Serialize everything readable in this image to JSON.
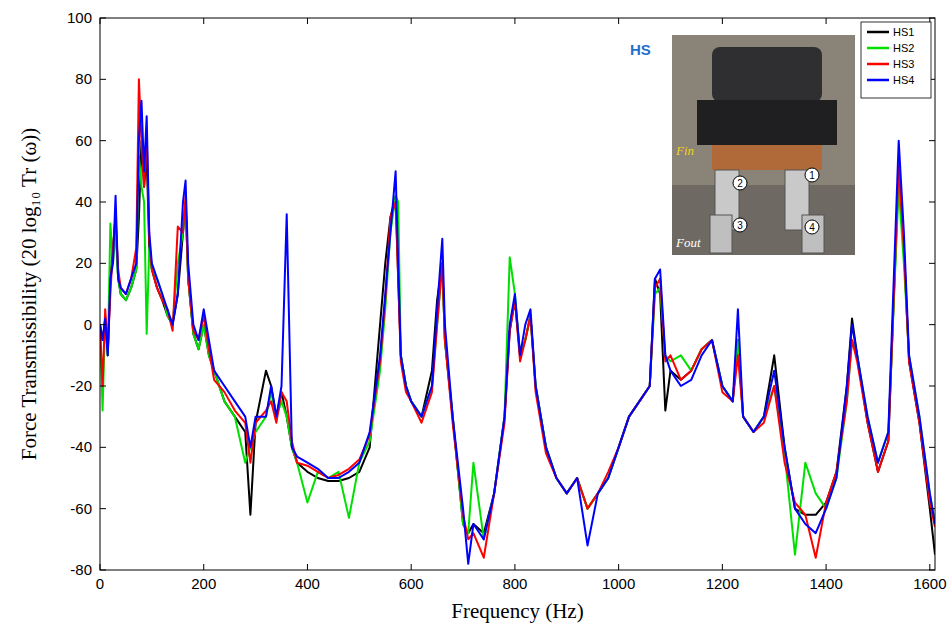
{
  "chart_data": {
    "type": "line",
    "x_label": "Frequency (Hz)",
    "y_label": "Force Transmissibility  (20 log₁₀ Tr (ω))",
    "annotations": [
      "HS",
      "Fin",
      "Fout",
      "1",
      "2",
      "3",
      "4"
    ],
    "xlim": [
      0,
      1610
    ],
    "xticks": [
      0,
      200,
      400,
      600,
      800,
      1000,
      1200,
      1400,
      1600
    ],
    "ylim": [
      -80,
      100
    ],
    "yticks": [
      -80,
      -60,
      -40,
      -20,
      0,
      20,
      40,
      60,
      80,
      100
    ],
    "grid": false,
    "legend": "upper right",
    "x": [
      0,
      5,
      10,
      15,
      20,
      25,
      30,
      35,
      40,
      50,
      60,
      70,
      75,
      80,
      85,
      90,
      95,
      100,
      110,
      120,
      130,
      140,
      150,
      160,
      165,
      170,
      180,
      190,
      200,
      210,
      220,
      240,
      260,
      280,
      290,
      300,
      320,
      330,
      340,
      350,
      360,
      370,
      380,
      400,
      420,
      440,
      460,
      480,
      500,
      520,
      540,
      550,
      560,
      570,
      575,
      580,
      590,
      600,
      620,
      640,
      650,
      660,
      665,
      680,
      700,
      710,
      720,
      740,
      760,
      780,
      790,
      800,
      810,
      820,
      830,
      840,
      860,
      880,
      900,
      920,
      940,
      960,
      980,
      1000,
      1020,
      1040,
      1060,
      1070,
      1080,
      1090,
      1100,
      1120,
      1140,
      1160,
      1180,
      1200,
      1220,
      1230,
      1240,
      1260,
      1280,
      1300,
      1320,
      1340,
      1360,
      1380,
      1400,
      1420,
      1440,
      1450,
      1460,
      1480,
      1500,
      1520,
      1540,
      1550,
      1560,
      1580,
      1600,
      1610
    ],
    "series": [
      {
        "name": "HS1",
        "color": "#000000",
        "values": [
          0,
          -5,
          2,
          -10,
          15,
          25,
          35,
          15,
          10,
          8,
          12,
          18,
          35,
          60,
          45,
          55,
          25,
          18,
          12,
          8,
          3,
          0,
          10,
          30,
          40,
          15,
          -3,
          -8,
          0,
          -10,
          -15,
          -25,
          -30,
          -35,
          -62,
          -32,
          -15,
          -20,
          -30,
          -22,
          -30,
          -40,
          -45,
          -48,
          -50,
          -51,
          -51,
          -50,
          -48,
          -40,
          0,
          20,
          35,
          42,
          15,
          -10,
          -20,
          -25,
          -30,
          -15,
          8,
          20,
          -5,
          -30,
          -65,
          -68,
          -65,
          -68,
          -55,
          -30,
          -2,
          8,
          -10,
          -5,
          3,
          -20,
          -40,
          -50,
          -55,
          -50,
          -60,
          -55,
          -50,
          -40,
          -30,
          -25,
          -20,
          15,
          10,
          -28,
          -15,
          -18,
          -15,
          -8,
          -5,
          -20,
          -25,
          -5,
          -30,
          -35,
          -30,
          -10,
          -40,
          -60,
          -62,
          -62,
          -58,
          -48,
          -20,
          2,
          -10,
          -32,
          -48,
          -38,
          50,
          25,
          -12,
          -32,
          -60,
          -75
        ]
      },
      {
        "name": "HS2",
        "color": "#00e000",
        "values": [
          0,
          -28,
          3,
          -10,
          33,
          20,
          30,
          15,
          10,
          8,
          12,
          18,
          55,
          45,
          40,
          -3,
          25,
          18,
          15,
          10,
          3,
          0,
          20,
          30,
          40,
          15,
          -3,
          -8,
          0,
          -10,
          -15,
          -25,
          -30,
          -45,
          -40,
          -35,
          -30,
          -22,
          -30,
          -25,
          -30,
          -40,
          -45,
          -58,
          -48,
          -50,
          -48,
          -63,
          -45,
          -38,
          -15,
          5,
          30,
          42,
          40,
          -10,
          -20,
          -25,
          -30,
          -20,
          0,
          20,
          -5,
          -30,
          -65,
          -68,
          -45,
          -70,
          -55,
          -30,
          22,
          10,
          -10,
          -5,
          3,
          -20,
          -40,
          -50,
          -55,
          -50,
          -60,
          -55,
          -50,
          -40,
          -30,
          -25,
          -20,
          10,
          12,
          -10,
          -12,
          -10,
          -15,
          -8,
          -5,
          -20,
          -25,
          -5,
          -30,
          -35,
          -30,
          -20,
          -42,
          -75,
          -45,
          -55,
          -60,
          -50,
          -25,
          -5,
          -10,
          -30,
          -45,
          -35,
          45,
          20,
          -10,
          -30,
          -55,
          -65
        ]
      },
      {
        "name": "HS3",
        "color": "#ff0000",
        "values": [
          0,
          -20,
          5,
          -8,
          10,
          25,
          35,
          18,
          12,
          10,
          15,
          25,
          80,
          60,
          45,
          62,
          28,
          18,
          12,
          8,
          5,
          -2,
          32,
          30,
          42,
          15,
          -2,
          -5,
          3,
          -8,
          -18,
          -22,
          -28,
          -32,
          -45,
          -32,
          -28,
          -25,
          -32,
          -22,
          -25,
          -38,
          -45,
          -46,
          -48,
          -50,
          -49,
          -47,
          -44,
          -36,
          -12,
          8,
          35,
          40,
          15,
          -12,
          -22,
          -25,
          -32,
          -22,
          0,
          20,
          -5,
          -32,
          -62,
          -70,
          -68,
          -76,
          -55,
          -32,
          -2,
          8,
          -12,
          -5,
          3,
          -22,
          -42,
          -50,
          -55,
          -50,
          -60,
          -55,
          -48,
          -40,
          -30,
          -25,
          -20,
          12,
          15,
          -12,
          -10,
          -18,
          -15,
          -8,
          -5,
          -22,
          -25,
          -10,
          -30,
          -35,
          -32,
          -20,
          -45,
          -58,
          -62,
          -76,
          -58,
          -48,
          -25,
          -5,
          -12,
          -32,
          -48,
          -38,
          52,
          25,
          -12,
          -32,
          -58,
          -66
        ]
      },
      {
        "name": "HS4",
        "color": "#0000ff",
        "values": [
          0,
          -5,
          2,
          -10,
          15,
          20,
          42,
          15,
          12,
          10,
          15,
          20,
          60,
          73,
          50,
          68,
          30,
          20,
          15,
          10,
          5,
          0,
          10,
          40,
          47,
          20,
          0,
          -5,
          5,
          -5,
          -15,
          -20,
          -25,
          -30,
          -40,
          -30,
          -30,
          -20,
          -30,
          -20,
          36,
          -40,
          -43,
          -45,
          -47,
          -50,
          -50,
          -48,
          -45,
          -35,
          -10,
          10,
          30,
          50,
          20,
          -10,
          -20,
          -25,
          -30,
          -20,
          5,
          28,
          0,
          -30,
          -60,
          -78,
          -65,
          -70,
          -55,
          -30,
          0,
          10,
          -10,
          0,
          5,
          -20,
          -40,
          -50,
          -55,
          -50,
          -72,
          -55,
          -50,
          -40,
          -30,
          -25,
          -20,
          15,
          18,
          -10,
          -15,
          -20,
          -18,
          -10,
          -5,
          -20,
          -25,
          5,
          -30,
          -35,
          -30,
          -15,
          -40,
          -60,
          -65,
          -68,
          -60,
          -50,
          -20,
          0,
          -10,
          -30,
          -45,
          -35,
          60,
          30,
          -10,
          -30,
          -55,
          -65
        ]
      }
    ]
  }
}
